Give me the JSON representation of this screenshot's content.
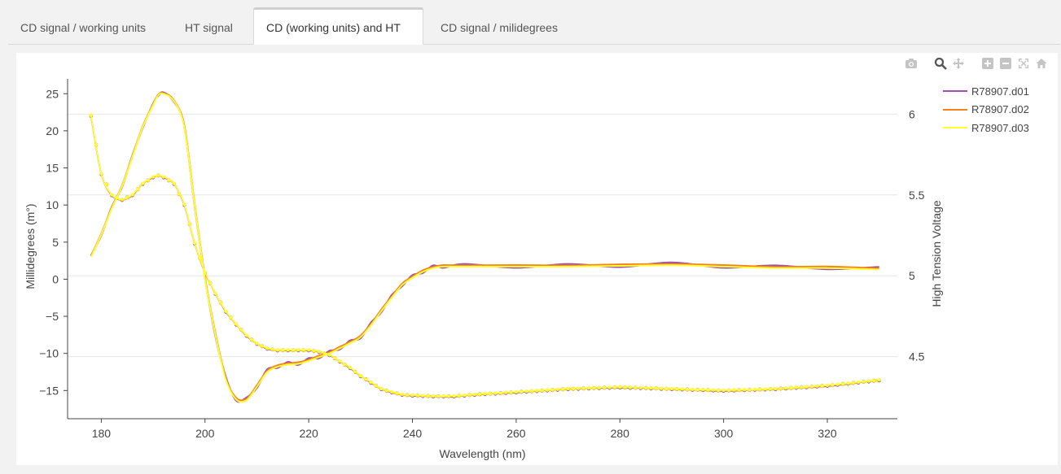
{
  "tabs": [
    {
      "label": "CD signal / working units",
      "active": false
    },
    {
      "label": "HT signal",
      "active": false
    },
    {
      "label": "CD (working units) and HT",
      "active": true
    },
    {
      "label": "CD signal / milidegrees",
      "active": false
    }
  ],
  "modebar": [
    "camera-icon",
    "zoom-icon",
    "pan-icon",
    "zoom-in-icon",
    "zoom-out-icon",
    "autoscale-icon",
    "reset-axes-icon"
  ],
  "chart_data": {
    "type": "line",
    "xlabel": "Wavelength (nm)",
    "ylabel": "Millidegrees (m°)",
    "y2label": "High Tension Voltage",
    "xlim": [
      173.5,
      333.5
    ],
    "ylim": [
      -18.8,
      27
    ],
    "y2lim": [
      4.116,
      6.218
    ],
    "x_ticks": [
      180,
      200,
      220,
      240,
      260,
      280,
      300,
      320
    ],
    "y_ticks": [
      25,
      20,
      15,
      10,
      5,
      0,
      -5,
      -10,
      -15
    ],
    "y_tick_labels": [
      "25",
      "20",
      "15",
      "10",
      "5",
      "0",
      "−5",
      "−10",
      "−15"
    ],
    "y2_ticks": [
      6,
      5.5,
      5,
      4.5
    ],
    "y2_tick_labels": [
      "6",
      "5.5",
      "5",
      "4.5"
    ],
    "legend_position": "top-right",
    "series": [
      {
        "name": "R78907.d01",
        "color": "#9c4fb0"
      },
      {
        "name": "R78907.d02",
        "color": "#f5821f"
      },
      {
        "name": "R78907.d03",
        "color": "#ffff33"
      }
    ],
    "cd_curve": {
      "x": [
        178,
        180,
        182,
        184,
        186,
        188,
        190,
        191,
        192,
        194,
        196,
        198,
        200,
        202,
        204,
        206,
        208,
        210,
        212,
        214,
        216,
        218,
        220,
        222,
        224,
        226,
        228,
        230,
        232,
        234,
        236,
        238,
        240,
        242,
        244,
        246,
        250,
        260,
        270,
        280,
        290,
        300,
        310,
        320,
        330
      ],
      "y": [
        3.0,
        6.0,
        9.5,
        12.5,
        16.5,
        20.5,
        23.5,
        24.8,
        25.0,
        24.0,
        20.5,
        10.0,
        0.0,
        -7.5,
        -13.5,
        -16.2,
        -16.3,
        -14.5,
        -12.5,
        -11.8,
        -11.5,
        -11.4,
        -11.0,
        -10.5,
        -10.0,
        -9.3,
        -8.6,
        -7.8,
        -6.2,
        -4.3,
        -2.5,
        -0.8,
        0.2,
        1.0,
        1.5,
        1.7,
        1.7,
        1.7,
        1.7,
        1.8,
        1.9,
        1.7,
        1.5,
        1.5,
        1.3
      ]
    },
    "ht_curve": {
      "x": [
        178,
        180,
        182,
        184,
        186,
        188,
        190,
        191,
        192,
        194,
        196,
        198,
        200,
        202,
        204,
        206,
        208,
        210,
        212,
        214,
        216,
        218,
        220,
        222,
        224,
        226,
        228,
        230,
        232,
        234,
        236,
        238,
        240,
        244,
        248,
        252,
        260,
        270,
        280,
        290,
        300,
        310,
        320,
        330
      ],
      "y": [
        5.99,
        5.63,
        5.5,
        5.47,
        5.5,
        5.57,
        5.61,
        5.62,
        5.61,
        5.57,
        5.44,
        5.2,
        5.02,
        4.89,
        4.78,
        4.7,
        4.63,
        4.58,
        4.55,
        4.54,
        4.54,
        4.54,
        4.54,
        4.53,
        4.51,
        4.47,
        4.43,
        4.38,
        4.34,
        4.3,
        4.28,
        4.265,
        4.26,
        4.255,
        4.255,
        4.265,
        4.28,
        4.3,
        4.31,
        4.3,
        4.29,
        4.3,
        4.32,
        4.355
      ]
    }
  }
}
